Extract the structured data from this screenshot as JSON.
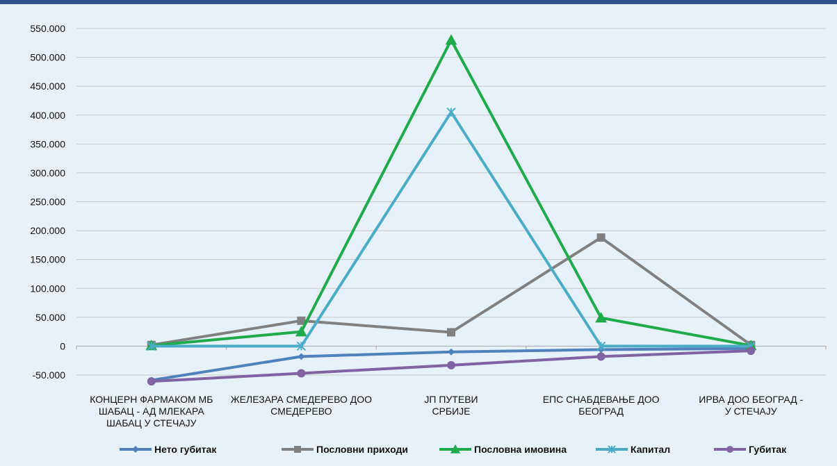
{
  "chart_data": {
    "type": "line",
    "ylim": [
      -50000,
      550000
    ],
    "ytick_step": 50000,
    "ytick_labels": [
      "-50.000",
      "0",
      "50.000",
      "100.000",
      "150.000",
      "200.000",
      "250.000",
      "300.000",
      "350.000",
      "400.000",
      "450.000",
      "500.000",
      "550.000"
    ],
    "categories": [
      [
        "КОНЦЕРН ФАРМАКОМ МБ",
        "ШАБАЦ  - АД  МЛЕКАРА",
        "ШАБАЦ У СТЕЧАЈУ"
      ],
      [
        "ЖЕЛЕЗАРА СМЕДЕРЕВО ДОО",
        "СМЕДЕРЕВО"
      ],
      [
        "ЈП ПУТЕВИ",
        "СРБИЈЕ"
      ],
      [
        "ЕПС СНАБДЕВАЊЕ ДОО",
        "БЕОГРАД"
      ],
      [
        "ИРВА ДОО БЕОГРАД -",
        "У СТЕЧАЈУ"
      ]
    ],
    "series": [
      {
        "name": "Нето губитак",
        "color": "#4f81bd",
        "marker": "diamond",
        "values": [
          -59000,
          -18000,
          -10000,
          -6000,
          -4000
        ]
      },
      {
        "name": "Пословни приходи",
        "color": "#808080",
        "marker": "square",
        "values": [
          2000,
          44000,
          24000,
          188000,
          2000
        ]
      },
      {
        "name": "Пословна имовина",
        "color": "#1faa4b",
        "marker": "triangle",
        "values": [
          1000,
          25000,
          530000,
          49000,
          1000
        ]
      },
      {
        "name": "Капитал",
        "color": "#4bacc6",
        "marker": "star",
        "values": [
          0,
          0,
          405000,
          0,
          0
        ]
      },
      {
        "name": "Губитак",
        "color": "#8064a2",
        "marker": "circle",
        "values": [
          -61000,
          -47000,
          -33000,
          -18000,
          -8000
        ]
      }
    ],
    "grid": true,
    "legend_position": "bottom"
  }
}
